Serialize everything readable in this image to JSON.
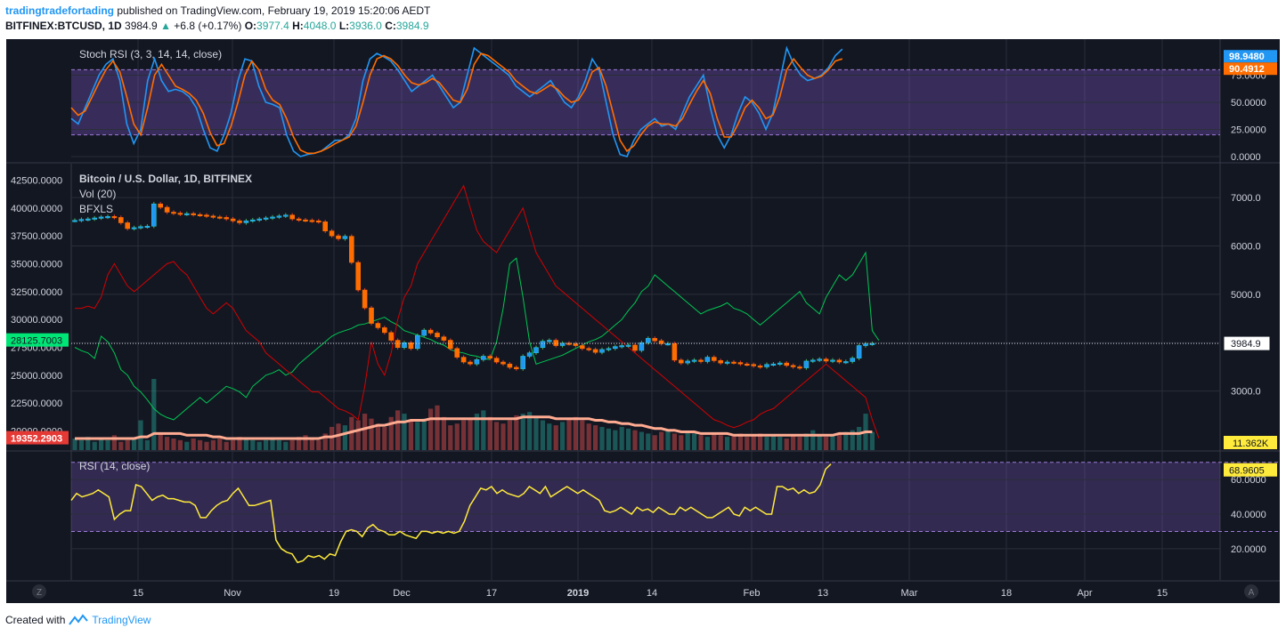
{
  "header": {
    "author": "tradingtradefortading",
    "published": "published on TradingView.com, February 19, 2019 15:20:06 AEDT",
    "symbol": "BITFINEX:BTCUSD, 1D",
    "last": "3984.9",
    "change": "+6.8 (+0.17%)",
    "o_label": "O:",
    "o_value": "3977.4",
    "h_label": "H:",
    "h_value": "4048.0",
    "l_label": "L:",
    "l_value": "3936.0",
    "c_label": "C:",
    "c_value": "3984.9"
  },
  "footer": {
    "created_with": "Created with",
    "brand": "TradingView"
  },
  "colors": {
    "bg": "#131722",
    "grid": "#2a2e39",
    "text": "#d1d4dc",
    "stoch_k": "#2196f3",
    "stoch_d": "#ff6d00",
    "band": "#7e57c2",
    "up": "#26a69a",
    "down": "#ef5350",
    "rsi": "#ffeb3b",
    "bfxls_long": "#00c853",
    "bfxls_short": "#d50000",
    "vol_ma": "#ffab91"
  },
  "chart_data": [
    {
      "type": "line",
      "panel": "stoch",
      "title": "Stoch RSI (3, 3, 14, 14, close)",
      "ylim": [
        0,
        100
      ],
      "yticks": [
        "0.0000",
        "25.0000",
        "50.0000",
        "75.0000"
      ],
      "ytick_values": [
        0,
        25,
        50,
        75
      ],
      "bands": [
        20,
        80
      ],
      "last_labels": {
        "k": "98.9480",
        "d": "90.4912"
      },
      "series": [
        {
          "key": "k",
          "values": [
            35,
            30,
            45,
            60,
            75,
            85,
            90,
            70,
            30,
            12,
            25,
            70,
            90,
            70,
            60,
            62,
            60,
            55,
            45,
            25,
            8,
            5,
            20,
            40,
            70,
            90,
            88,
            65,
            50,
            48,
            45,
            20,
            5,
            0,
            2,
            3,
            5,
            10,
            15,
            15,
            20,
            35,
            70,
            90,
            95,
            92,
            88,
            80,
            70,
            60,
            65,
            70,
            75,
            65,
            55,
            45,
            50,
            75,
            100,
            95,
            90,
            85,
            80,
            75,
            65,
            60,
            55,
            60,
            65,
            70,
            60,
            50,
            45,
            55,
            70,
            90,
            80,
            50,
            20,
            2,
            0,
            15,
            25,
            30,
            35,
            28,
            30,
            25,
            40,
            55,
            65,
            75,
            45,
            20,
            8,
            20,
            40,
            55,
            50,
            40,
            25,
            40,
            70,
            100,
            85,
            75,
            70,
            72,
            75,
            82,
            93,
            99
          ]
        },
        {
          "key": "d",
          "values": [
            45,
            38,
            42,
            55,
            68,
            80,
            88,
            78,
            55,
            30,
            20,
            45,
            75,
            85,
            75,
            65,
            62,
            58,
            52,
            40,
            22,
            10,
            12,
            28,
            50,
            75,
            88,
            80,
            62,
            52,
            48,
            35,
            18,
            6,
            3,
            3,
            5,
            8,
            12,
            15,
            18,
            28,
            50,
            75,
            90,
            93,
            90,
            84,
            75,
            68,
            66,
            68,
            72,
            68,
            60,
            52,
            50,
            62,
            85,
            95,
            93,
            88,
            83,
            78,
            70,
            65,
            60,
            58,
            62,
            66,
            62,
            55,
            50,
            52,
            62,
            78,
            82,
            65,
            40,
            15,
            5,
            10,
            20,
            28,
            32,
            30,
            30,
            28,
            35,
            48,
            60,
            70,
            58,
            35,
            18,
            18,
            30,
            45,
            52,
            45,
            35,
            38,
            55,
            80,
            90,
            82,
            75,
            72,
            74,
            80,
            88,
            90
          ]
        }
      ]
    },
    {
      "type": "candlestick",
      "panel": "price",
      "title": "Bitcoin / U.S. Dollar, 1D, BITFINEX",
      "legend": [
        "Vol (20)",
        "BFXLS"
      ],
      "ylim": [
        2000,
        7500
      ],
      "right_ticks": [
        "3000.0",
        "4000.0",
        "5000.0",
        "6000.0",
        "7000.0"
      ],
      "right_tick_values": [
        3000,
        4000,
        5000,
        6000,
        7000
      ],
      "left_ticks": [
        "20000.0000",
        "22500.0000",
        "25000.0000",
        "27500.0000",
        "30000.0000",
        "32500.0000",
        "35000.0000",
        "37500.0000",
        "40000.0000",
        "42500.0000"
      ],
      "left_tick_values": [
        20000,
        22500,
        25000,
        27500,
        30000,
        32500,
        35000,
        37500,
        40000,
        42500
      ],
      "left_ylim": [
        19000,
        43500
      ],
      "last_price_label": "3984.9",
      "last_price": 3984.9,
      "left_labels": {
        "long": "28125.7003",
        "short": "19352.2903"
      },
      "volume_label": "11.362K",
      "volume_last": 11362,
      "close": [
        6530,
        6550,
        6560,
        6580,
        6600,
        6610,
        6590,
        6480,
        6360,
        6380,
        6400,
        6410,
        6870,
        6800,
        6700,
        6680,
        6660,
        6670,
        6650,
        6640,
        6620,
        6600,
        6590,
        6560,
        6520,
        6480,
        6520,
        6540,
        6560,
        6580,
        6600,
        6620,
        6640,
        6560,
        6540,
        6530,
        6520,
        6500,
        6310,
        6210,
        6150,
        6200,
        5660,
        5090,
        4720,
        4400,
        4310,
        4210,
        4050,
        3900,
        4000,
        3880,
        4150,
        4260,
        4200,
        4120,
        4050,
        3880,
        3700,
        3600,
        3560,
        3650,
        3720,
        3680,
        3600,
        3560,
        3490,
        3460,
        3720,
        3790,
        3900,
        4030,
        4050,
        3940,
        3990,
        3980,
        3940,
        3880,
        3860,
        3800,
        3860,
        3880,
        3920,
        3940,
        3950,
        3840,
        4000,
        4090,
        4040,
        3980,
        3980,
        3640,
        3580,
        3620,
        3640,
        3610,
        3700,
        3630,
        3580,
        3600,
        3590,
        3560,
        3550,
        3520,
        3500,
        3550,
        3560,
        3580,
        3530,
        3500,
        3480,
        3620,
        3640,
        3660,
        3620,
        3640,
        3600,
        3610,
        3680,
        3940,
        3977,
        3985
      ]
    },
    {
      "type": "line",
      "panel": "price",
      "name": "BFXLS",
      "series": [
        {
          "key": "long",
          "values": [
            27500,
            27200,
            27000,
            26500,
            28500,
            28000,
            27000,
            25500,
            25000,
            24000,
            23500,
            22800,
            22000,
            21500,
            21200,
            21000,
            21500,
            22000,
            22500,
            23000,
            22500,
            23000,
            23500,
            24000,
            23800,
            23500,
            23000,
            24000,
            24500,
            25000,
            25200,
            25500,
            25000,
            25300,
            26000,
            26500,
            27000,
            27500,
            28000,
            28500,
            28800,
            29000,
            29200,
            29500,
            29600,
            29800,
            30000,
            30200,
            29800,
            29500,
            29000,
            28800,
            28600,
            28400,
            28200,
            27900,
            27700,
            27300,
            27100,
            27000,
            26800,
            26700,
            26500,
            26400,
            28000,
            31000,
            35000,
            35500,
            32000,
            28000,
            26000,
            26200,
            26400,
            26600,
            26800,
            27100,
            27400,
            27700,
            28000,
            28200,
            28500,
            29000,
            29500,
            30000,
            30800,
            31500,
            32500,
            33000,
            34000,
            33500,
            33000,
            32500,
            32000,
            31500,
            31000,
            30500,
            30800,
            31000,
            31200,
            31500,
            31000,
            30800,
            30500,
            30000,
            29500,
            30000,
            30500,
            31000,
            31500,
            32000,
            32500,
            31500,
            31000,
            30500,
            32000,
            33000,
            34000,
            33500,
            34000,
            35000,
            36000,
            29000,
            28125
          ]
        },
        {
          "key": "short",
          "values": [
            31000,
            31000,
            31200,
            31000,
            32000,
            34000,
            35000,
            34000,
            33000,
            32500,
            33000,
            33500,
            34000,
            34500,
            35000,
            35200,
            34500,
            34000,
            33000,
            32000,
            31000,
            30500,
            31000,
            31500,
            31000,
            30000,
            29000,
            28500,
            28000,
            27000,
            26500,
            26000,
            25500,
            25000,
            24500,
            24000,
            23500,
            23500,
            23000,
            22500,
            22000,
            21800,
            21500,
            21000,
            24000,
            28000,
            26000,
            25000,
            27000,
            30000,
            32000,
            33000,
            35000,
            36000,
            37000,
            38000,
            39000,
            40000,
            41000,
            42000,
            40000,
            38000,
            37000,
            36500,
            36000,
            37000,
            38000,
            39000,
            40000,
            38000,
            36000,
            35000,
            34000,
            33000,
            32500,
            32000,
            31500,
            31000,
            30500,
            30000,
            29500,
            29000,
            28500,
            28000,
            27500,
            27000,
            26500,
            26000,
            25500,
            25000,
            24500,
            24000,
            23500,
            23000,
            22500,
            22000,
            21500,
            21000,
            20800,
            20500,
            20300,
            20500,
            20800,
            21000,
            21500,
            21800,
            22000,
            22500,
            23000,
            23500,
            24000,
            24500,
            25000,
            25500,
            26000,
            25500,
            25000,
            24500,
            24000,
            23500,
            23000,
            21000,
            19352
          ]
        }
      ]
    },
    {
      "type": "bar",
      "panel": "volume",
      "name": "Vol (20)",
      "values": [
        7,
        6,
        8,
        5,
        7,
        6,
        9,
        5,
        6,
        7,
        18,
        6,
        43,
        10,
        8,
        7,
        6,
        5,
        7,
        6,
        5,
        6,
        7,
        5,
        6,
        8,
        7,
        6,
        5,
        6,
        7,
        6,
        5,
        6,
        8,
        9,
        7,
        6,
        10,
        14,
        16,
        15,
        20,
        18,
        22,
        19,
        16,
        14,
        20,
        24,
        22,
        18,
        17,
        19,
        25,
        27,
        20,
        15,
        16,
        18,
        19,
        22,
        24,
        20,
        17,
        16,
        18,
        21,
        22,
        23,
        20,
        18,
        16,
        15,
        17,
        19,
        20,
        18,
        16,
        15,
        14,
        13,
        12,
        14,
        13,
        12,
        11,
        10,
        9,
        11,
        12,
        10,
        9,
        11,
        10,
        9,
        8,
        10,
        9,
        8,
        9,
        10,
        8,
        9,
        10,
        8,
        9,
        8,
        7,
        9,
        8,
        10,
        12,
        9,
        8,
        9,
        10,
        11,
        12,
        14,
        22,
        11
      ],
      "ma": [
        7,
        7,
        7,
        7,
        7,
        7,
        7,
        7,
        7,
        7,
        8,
        8,
        10,
        10,
        10,
        10,
        10,
        9,
        9,
        9,
        9,
        8,
        8,
        7,
        7,
        7,
        7,
        7,
        7,
        7,
        7,
        7,
        7,
        7,
        7,
        7,
        7,
        7,
        8,
        8,
        9,
        10,
        11,
        12,
        13,
        14,
        15,
        15,
        16,
        17,
        17,
        18,
        18,
        18,
        19,
        19,
        19,
        19,
        19,
        19,
        19,
        19,
        19,
        19,
        19,
        19,
        19,
        19,
        20,
        20,
        20,
        20,
        20,
        19,
        19,
        19,
        19,
        19,
        19,
        18,
        18,
        17,
        17,
        16,
        16,
        15,
        15,
        14,
        13,
        13,
        12,
        12,
        11,
        11,
        11,
        10,
        10,
        10,
        10,
        10,
        9,
        9,
        9,
        9,
        9,
        9,
        9,
        9,
        9,
        9,
        9,
        9,
        9,
        9,
        9,
        9,
        10,
        10,
        10,
        10,
        11,
        11
      ]
    },
    {
      "type": "line",
      "panel": "rsi",
      "title": "RSI (14, close)",
      "ylim": [
        5,
        74
      ],
      "yticks": [
        "20.0000",
        "40.0000",
        "60.0000"
      ],
      "ytick_values": [
        20,
        40,
        60
      ],
      "bands": [
        30,
        70
      ],
      "last_label": "68.9605",
      "values": [
        48,
        52,
        50,
        51,
        52,
        54,
        52,
        50,
        37,
        40,
        42,
        42,
        57,
        56,
        52,
        48,
        50,
        51,
        49,
        49,
        48,
        47,
        47,
        45,
        38,
        38,
        42,
        45,
        47,
        48,
        52,
        55,
        50,
        45,
        45,
        46,
        47,
        48,
        25,
        20,
        18,
        17,
        12,
        13,
        16,
        15,
        16,
        14,
        17,
        16,
        24,
        30,
        31,
        30,
        27,
        32,
        34,
        31,
        30,
        28,
        28,
        30,
        28,
        27,
        26,
        30,
        30,
        29,
        30,
        29,
        30,
        29,
        30,
        36,
        45,
        50,
        55,
        54,
        56,
        52,
        54,
        52,
        51,
        50,
        52,
        56,
        54,
        52,
        56,
        50,
        52,
        54,
        56,
        54,
        52,
        54,
        52,
        50,
        48,
        42,
        41,
        42,
        44,
        42,
        40,
        44,
        42,
        43,
        41,
        44,
        42,
        40,
        40,
        44,
        42,
        44,
        42,
        40,
        38,
        38,
        40,
        42,
        44,
        40,
        39,
        44,
        42,
        44,
        42,
        40,
        40,
        56,
        56,
        54,
        55,
        52,
        54,
        52,
        53,
        57,
        66,
        69
      ]
    },
    {
      "type": "time_axis",
      "labels": [
        "15",
        "Nov",
        "19",
        "Dec",
        "17",
        "2019",
        "14",
        "Feb",
        "13",
        "Mar",
        "18",
        "Apr",
        "15"
      ],
      "bold_labels": [
        "2019"
      ],
      "left_badge": "Z",
      "right_badge": "A"
    }
  ]
}
